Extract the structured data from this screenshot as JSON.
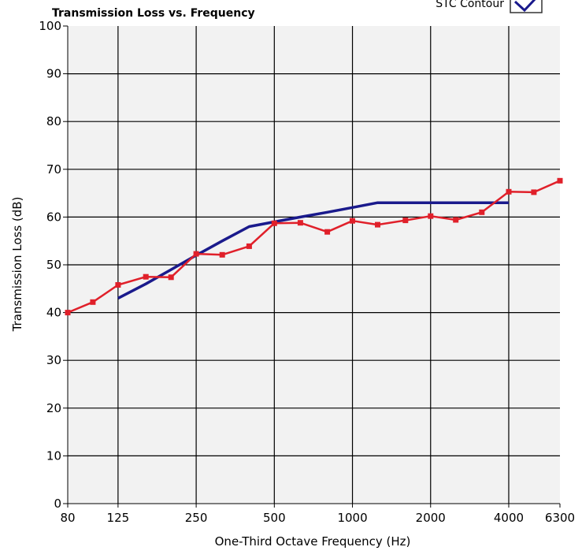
{
  "chart_data": {
    "type": "line",
    "title": "Transmission Loss vs. Frequency",
    "xlabel": "One-Third Octave Frequency (Hz)",
    "ylabel": "Transmission Loss (dB)",
    "x_scale": "log",
    "xlim": [
      80,
      6300
    ],
    "ylim": [
      0,
      100
    ],
    "grid": true,
    "x_ticks": [
      80,
      125,
      250,
      500,
      1000,
      2000,
      4000,
      6300
    ],
    "x_tick_labels": [
      "80",
      "125",
      "250",
      "500",
      "1000",
      "2000",
      "4000",
      "6300"
    ],
    "y_ticks": [
      0,
      10,
      20,
      30,
      40,
      50,
      60,
      70,
      80,
      90,
      100
    ],
    "y_tick_labels": [
      "0",
      "10",
      "20",
      "30",
      "40",
      "50",
      "60",
      "70",
      "80",
      "90",
      "100"
    ],
    "legend": {
      "position": "top-right",
      "entries": [
        "STC Contour"
      ]
    },
    "series": [
      {
        "name": "STC Contour",
        "color": "#1a1a8c",
        "markers": false,
        "x": [
          125,
          160,
          200,
          250,
          315,
          400,
          500,
          630,
          800,
          1000,
          1250,
          1600,
          2000,
          2500,
          3150,
          4000
        ],
        "y": [
          43,
          46,
          49,
          52,
          55,
          58,
          59,
          60,
          61,
          62,
          63,
          63,
          63,
          63,
          63,
          63
        ]
      },
      {
        "color": "#e0202a",
        "markers": true,
        "x": [
          80,
          100,
          125,
          160,
          200,
          250,
          315,
          400,
          500,
          630,
          800,
          1000,
          1250,
          1600,
          2000,
          2500,
          3150,
          4000,
          5000,
          6300
        ],
        "y": [
          40,
          42.2,
          45.8,
          47.5,
          47.4,
          52.3,
          52.1,
          53.9,
          58.7,
          58.8,
          56.9,
          59.2,
          58.4,
          59.3,
          60.2,
          59.4,
          61,
          65.3,
          65.2,
          67.6
        ]
      }
    ]
  }
}
